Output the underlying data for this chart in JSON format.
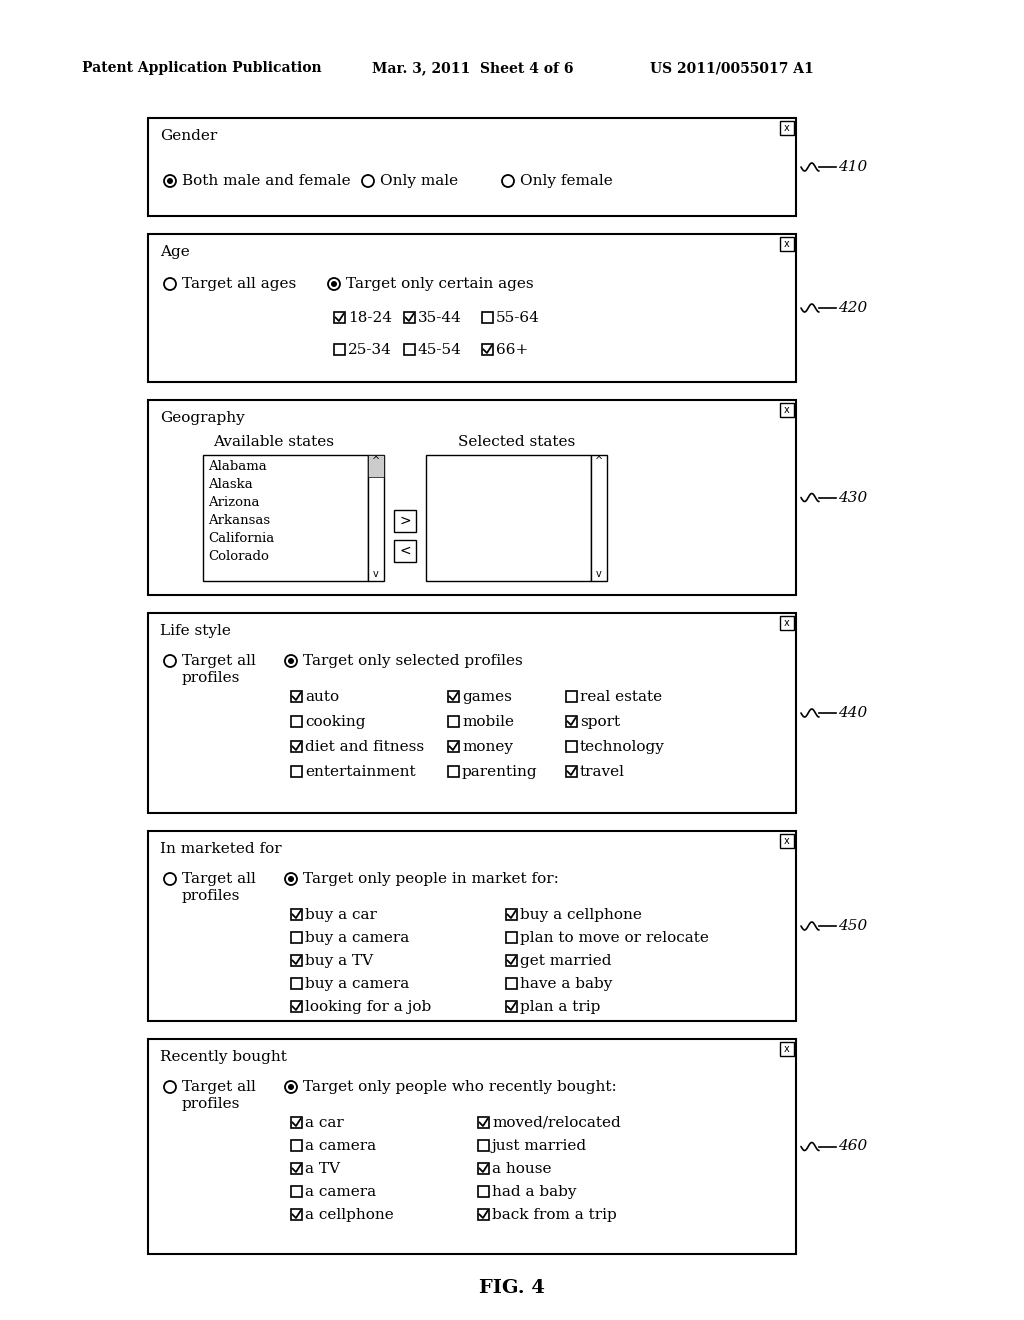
{
  "header_left": "Patent Application Publication",
  "header_mid": "Mar. 3, 2011  Sheet 4 of 6",
  "header_right": "US 2011/0055017 A1",
  "fig_label": "FIG. 4",
  "bg_color": "#ffffff"
}
